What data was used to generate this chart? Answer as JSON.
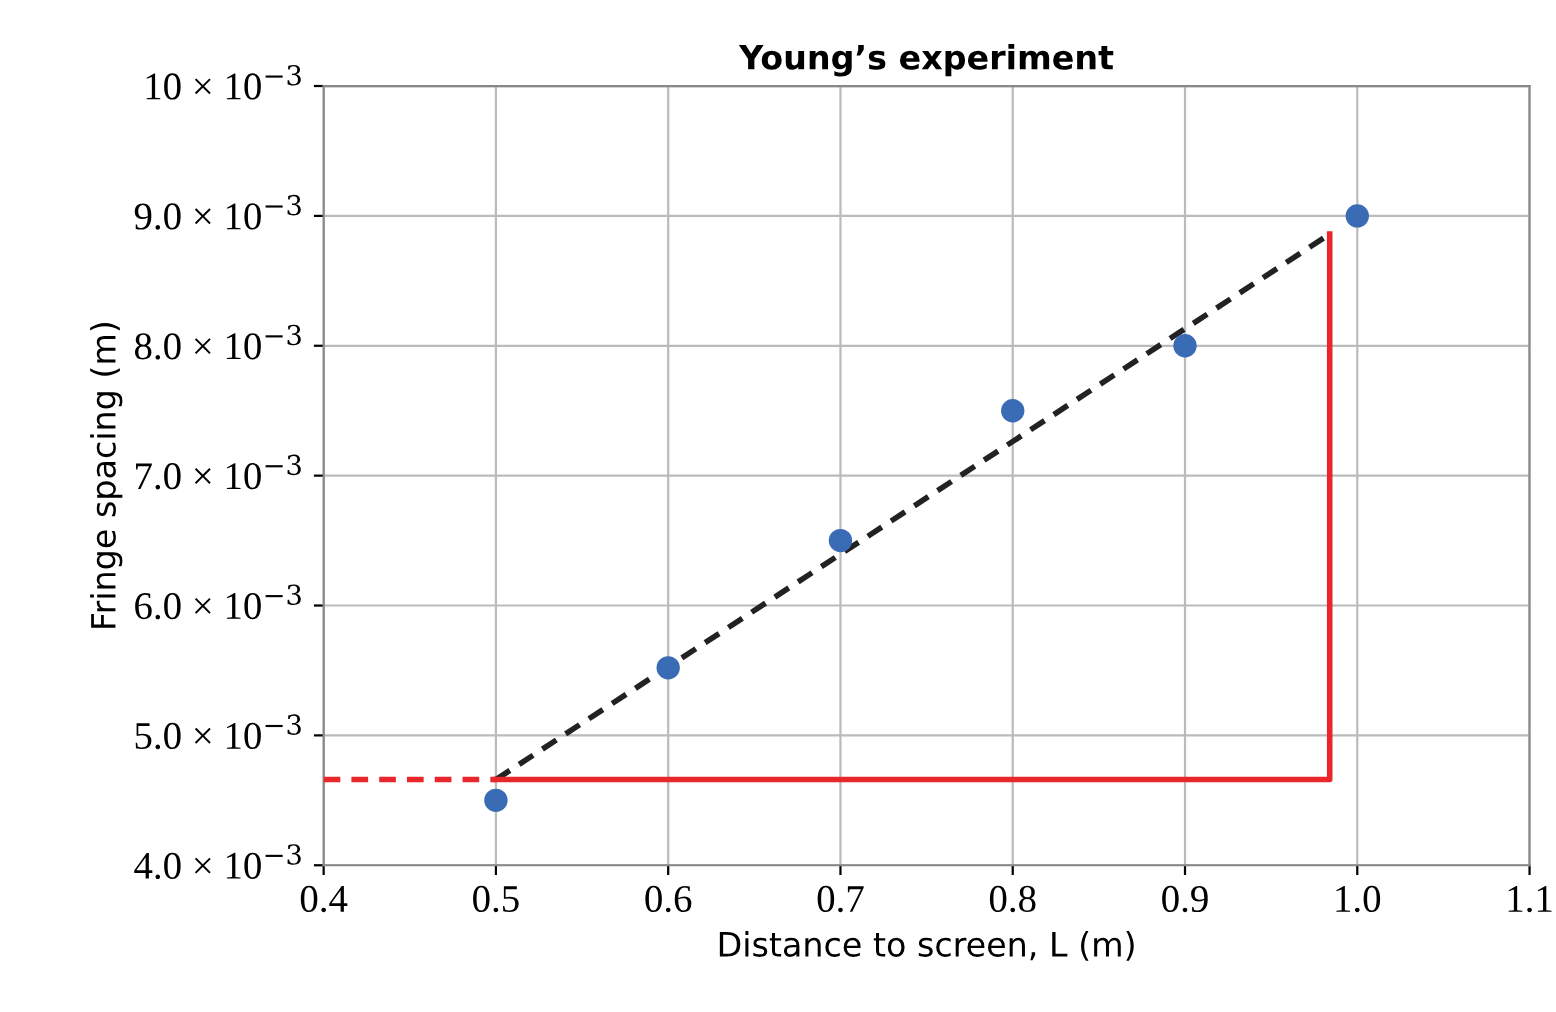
{
  "chart_data": {
    "type": "scatter",
    "title": "Young’s experiment",
    "xlabel": "Distance to screen, L (m)",
    "ylabel": "Fringe spacing (m)",
    "xlim": [
      0.4,
      1.1
    ],
    "xticks": [
      0.4,
      0.5,
      0.6,
      0.7,
      0.8,
      0.9,
      {
        "value": 1.0,
        "label": "1.0"
      },
      1.1
    ],
    "ylim": [
      0.004,
      0.01
    ],
    "yticks": [
      {
        "value": 0.004,
        "label": "4.0 × 10$^{−3}$"
      },
      {
        "value": 0.005,
        "label": "5.0 × 10$^{−3}$"
      },
      {
        "value": 0.006,
        "label": "6.0 × 10$^{−3}$"
      },
      {
        "value": 0.007,
        "label": "7.0 × 10$^{−3}$"
      },
      {
        "value": 0.008,
        "label": "8.0 × 10$^{−3}$"
      },
      {
        "value": 0.009,
        "label": "9.0 × 10$^{−3}$"
      },
      {
        "value": 0.01,
        "label": "10 × 10$^{−3}$"
      }
    ],
    "grid": true,
    "series": [
      {
        "type": "line",
        "color": "#222222",
        "line_style": "dashed",
        "marker": "none",
        "x": [
          0.5,
          0.984
        ],
        "values": [
          0.00466,
          0.00886
        ]
      },
      {
        "type": "line",
        "color": "#e8262b",
        "line_style": "solid",
        "marker": "none",
        "x": [
          0.5,
          0.984,
          0.984
        ],
        "values": [
          0.00466,
          0.00466,
          0.00886
        ]
      },
      {
        "type": "line",
        "color": "#e8262b",
        "line_style": "dashed",
        "marker": "none",
        "x": [
          0.4,
          0.5
        ],
        "values": [
          0.00466,
          0.00466
        ]
      },
      {
        "color": "#3a6bb5",
        "marker": "circle",
        "x": [
          0.5,
          0.6,
          0.7,
          0.8,
          0.9,
          1.0
        ],
        "values": [
          0.0045,
          0.00552,
          0.0065,
          0.0075,
          0.008,
          0.009
        ]
      }
    ]
  }
}
